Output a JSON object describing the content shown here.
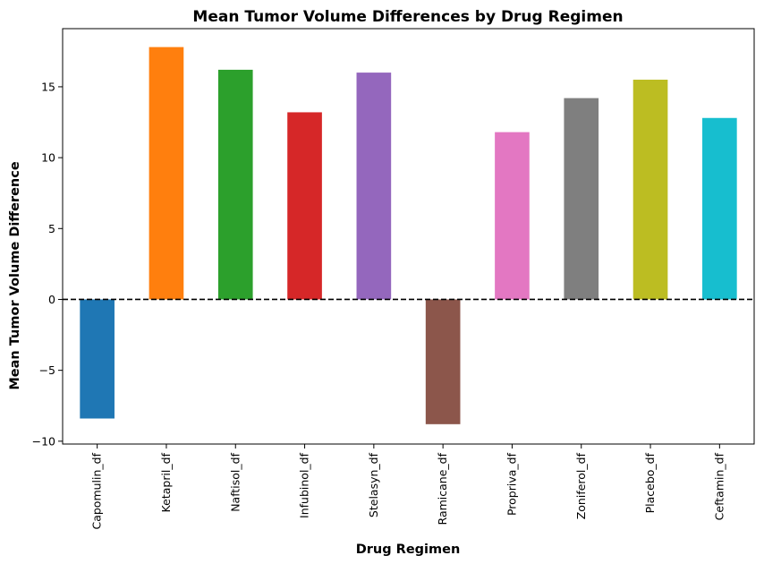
{
  "chart_data": {
    "type": "bar",
    "title": "Mean Tumor Volume Differences by Drug Regimen",
    "xlabel": "Drug Regimen",
    "ylabel": "Mean Tumor Volume Difference",
    "categories": [
      "Capomulin_df",
      "Ketapril_df",
      "Naftisol_df",
      "Infubinol_df",
      "Stelasyn_df",
      "Ramicane_df",
      "Propriva_df",
      "Zoniferol_df",
      "Placebo_df",
      "Ceftamin_df"
    ],
    "values": [
      -8.4,
      17.8,
      16.2,
      13.2,
      16.0,
      -8.8,
      11.8,
      14.2,
      15.5,
      12.8
    ],
    "colors": [
      "#1f77b4",
      "#ff7f0e",
      "#2ca02c",
      "#d62728",
      "#9467bd",
      "#8c564b",
      "#e377c2",
      "#7f7f7f",
      "#bcbd22",
      "#17becf"
    ],
    "ylim": [
      -10.2,
      19.1
    ],
    "yticks": [
      -10,
      -5,
      0,
      5,
      10,
      15
    ],
    "ytick_labels": [
      "−10",
      "−5",
      "0",
      "5",
      "10",
      "15"
    ],
    "reference_line": {
      "y": 0,
      "style": "dashed",
      "color": "#000000"
    },
    "grid": false,
    "legend": "none"
  }
}
